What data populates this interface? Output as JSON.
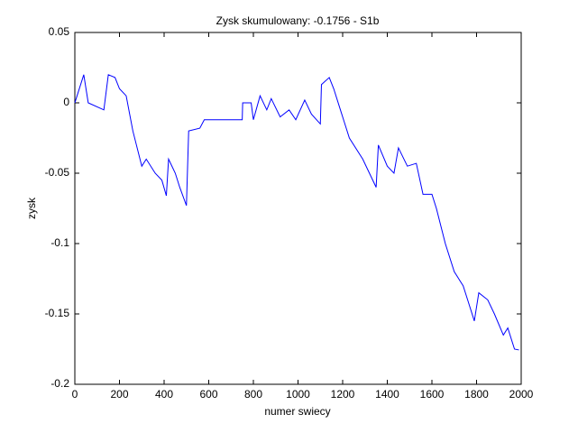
{
  "chart_data": {
    "type": "line",
    "title": "Zysk skumulowany: -0.1756 - S1b",
    "x_label": "numer swiecy",
    "y_label": "zysk",
    "color": "#0000ff",
    "x": [
      0,
      10,
      40,
      60,
      130,
      150,
      180,
      200,
      230,
      260,
      300,
      320,
      360,
      390,
      410,
      420,
      450,
      470,
      500,
      510,
      560,
      580,
      750,
      752,
      790,
      800,
      830,
      860,
      880,
      920,
      960,
      990,
      1030,
      1060,
      1100,
      1105,
      1140,
      1160,
      1190,
      1230,
      1290,
      1320,
      1350,
      1360,
      1400,
      1430,
      1450,
      1490,
      1530,
      1560,
      1600,
      1620,
      1660,
      1700,
      1740,
      1760,
      1790,
      1810,
      1850,
      1880,
      1920,
      1940,
      1970,
      1990
    ],
    "values": [
      0,
      0.005,
      0.02,
      0,
      -0.005,
      0.02,
      0.018,
      0.01,
      0.005,
      -0.02,
      -0.045,
      -0.04,
      -0.05,
      -0.055,
      -0.066,
      -0.04,
      -0.05,
      -0.06,
      -0.073,
      -0.02,
      -0.018,
      -0.012,
      -0.012,
      0,
      0,
      -0.012,
      0.005,
      -0.005,
      0.003,
      -0.01,
      -0.005,
      -0.012,
      0.002,
      -0.008,
      -0.015,
      0.013,
      0.018,
      0.01,
      -0.005,
      -0.025,
      -0.04,
      -0.05,
      -0.06,
      -0.03,
      -0.045,
      -0.05,
      -0.032,
      -0.045,
      -0.043,
      -0.065,
      -0.065,
      -0.075,
      -0.1,
      -0.12,
      -0.13,
      -0.14,
      -0.155,
      -0.135,
      -0.14,
      -0.15,
      -0.165,
      -0.16,
      -0.175,
      -0.1756
    ],
    "xlim": [
      0,
      2000
    ],
    "xticks": [
      0,
      200,
      400,
      600,
      800,
      1000,
      1200,
      1400,
      1600,
      1800,
      2000
    ],
    "ylim": [
      -0.2,
      0.05
    ],
    "yticks": [
      -0.2,
      -0.15,
      -0.1,
      -0.05,
      0,
      0.05
    ]
  }
}
